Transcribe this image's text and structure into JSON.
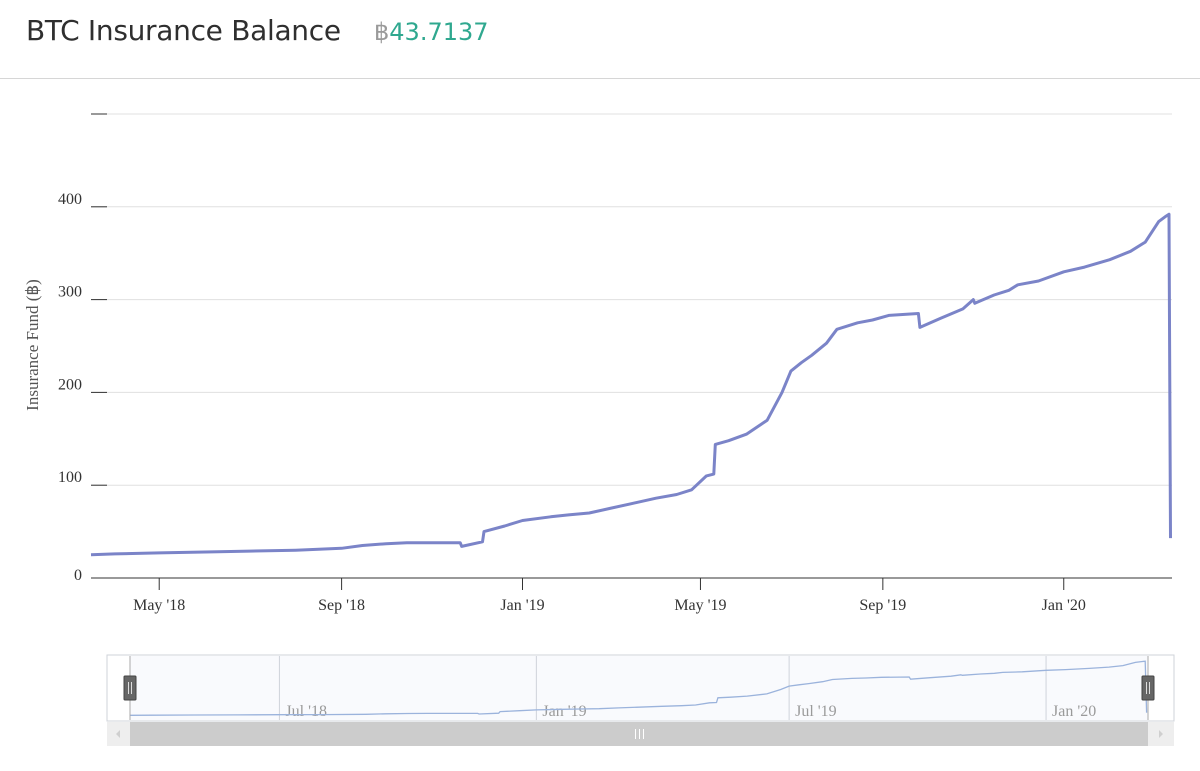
{
  "header": {
    "title": "BTC Insurance Balance",
    "currency_symbol": "฿",
    "balance_value": "43.7137"
  },
  "chart_data": {
    "type": "line",
    "title": "",
    "ylabel": "Insurance Fund (฿)",
    "xlabel": "",
    "ylim": [
      0,
      500
    ],
    "yticks": [
      "0",
      "100",
      "200",
      "300",
      "400"
    ],
    "xlim": [
      "2018-03-16",
      "2020-03-14"
    ],
    "xticks": [
      {
        "date": "2018-05-01",
        "label": "May '18"
      },
      {
        "date": "2018-09-01",
        "label": "Sep '18"
      },
      {
        "date": "2019-01-01",
        "label": "Jan '19"
      },
      {
        "date": "2019-05-01",
        "label": "May '19"
      },
      {
        "date": "2019-09-01",
        "label": "Sep '19"
      },
      {
        "date": "2020-01-01",
        "label": "Jan '20"
      }
    ],
    "grid": true,
    "legend": "none",
    "line_color": "#7b84c8",
    "series": [
      {
        "x": [
          "2018-03-16",
          "2018-04-01",
          "2018-05-01",
          "2018-06-01",
          "2018-07-01",
          "2018-08-01",
          "2018-09-01",
          "2018-09-15",
          "2018-10-01",
          "2018-10-15",
          "2018-11-01",
          "2018-11-20",
          "2018-11-21",
          "2018-12-05",
          "2018-12-06",
          "2018-12-20",
          "2019-01-01",
          "2019-01-20",
          "2019-02-01",
          "2019-02-15",
          "2019-03-01",
          "2019-03-15",
          "2019-04-01",
          "2019-04-15",
          "2019-04-25",
          "2019-05-05",
          "2019-05-10",
          "2019-05-11",
          "2019-05-20",
          "2019-06-01",
          "2019-06-15",
          "2019-06-25",
          "2019-07-01",
          "2019-07-08",
          "2019-07-15",
          "2019-07-25",
          "2019-08-01",
          "2019-08-15",
          "2019-08-25",
          "2019-09-05",
          "2019-09-25",
          "2019-09-26",
          "2019-10-10",
          "2019-10-25",
          "2019-11-01",
          "2019-11-02",
          "2019-11-15",
          "2019-11-25",
          "2019-12-01",
          "2019-12-15",
          "2020-01-01",
          "2020-01-15",
          "2020-02-01",
          "2020-02-15",
          "2020-02-25",
          "2020-03-05",
          "2020-03-10",
          "2020-03-12",
          "2020-03-13"
        ],
        "y": [
          25,
          26,
          27,
          28,
          29,
          30,
          32,
          35,
          37,
          38,
          38,
          38,
          34,
          39,
          50,
          56,
          62,
          66,
          68,
          70,
          75,
          80,
          86,
          90,
          95,
          110,
          112,
          144,
          148,
          155,
          170,
          200,
          223,
          232,
          240,
          253,
          268,
          275,
          278,
          283,
          285,
          270,
          280,
          290,
          300,
          296,
          305,
          310,
          316,
          320,
          330,
          335,
          343,
          352,
          362,
          384,
          390,
          392,
          43
        ]
      }
    ]
  },
  "navigator": {
    "tick_labels": [
      "Jul '18",
      "Jan '19",
      "Jul '19",
      "Jan '20"
    ],
    "left_handle_icon": "drag-handle-icon",
    "right_handle_icon": "drag-handle-icon",
    "scrollbar_grip_icon": "grip-icon"
  }
}
